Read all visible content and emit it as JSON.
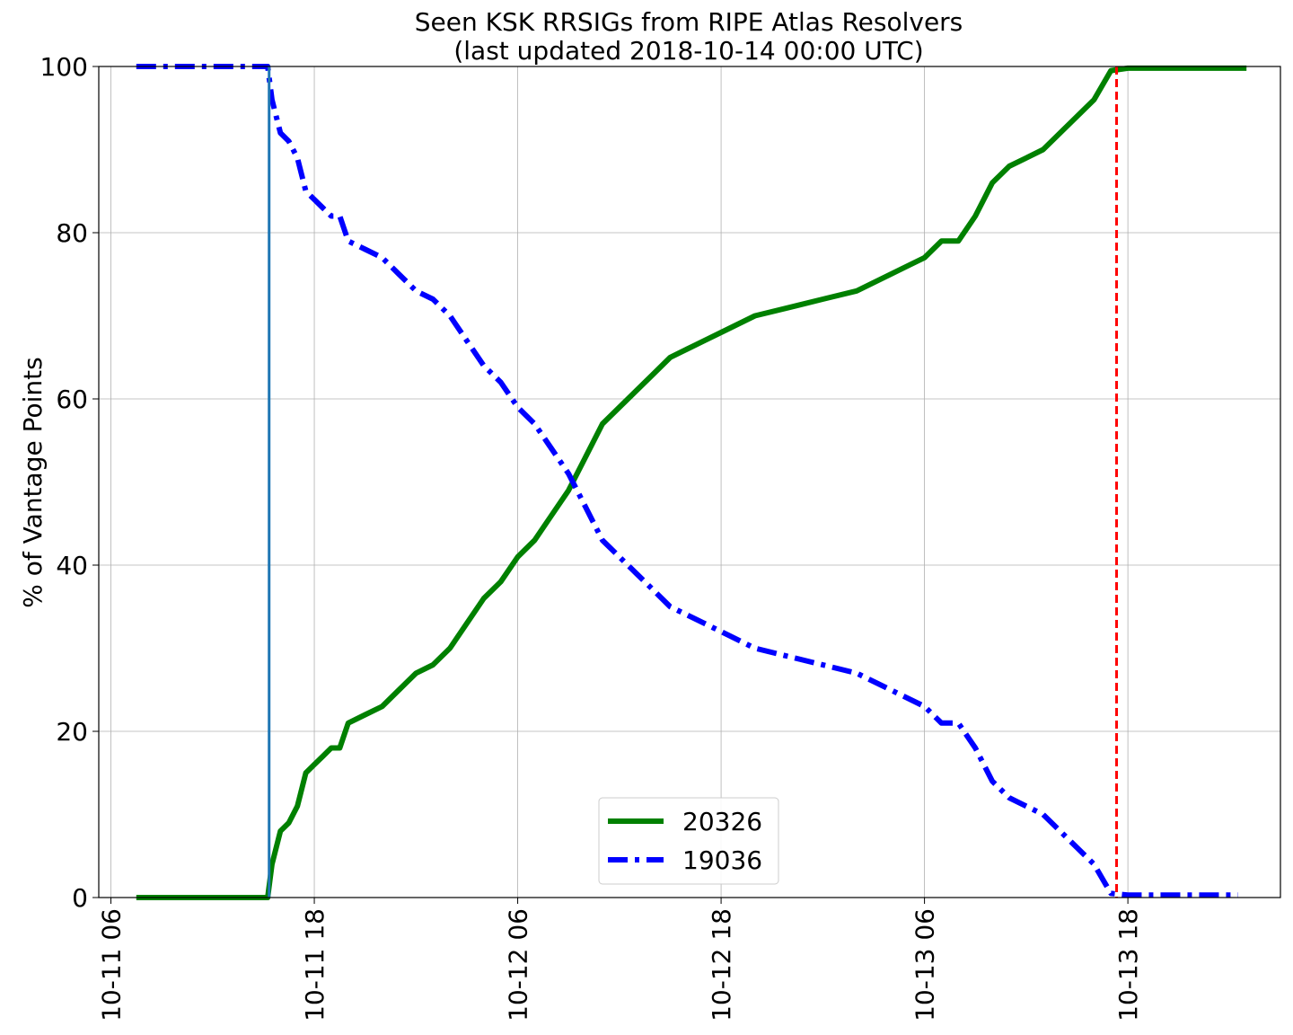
{
  "chart_data": {
    "type": "line",
    "title": "Seen KSK RRSIGs from RIPE Atlas Resolvers",
    "subtitle": "(last updated 2018-10-14 00:00 UTC)",
    "xlabel": "",
    "ylabel": "% of Vantage Points",
    "x_unit": "hour",
    "xlim": [
      "2018-10-11 05:17",
      "2018-10-14 03:00"
    ],
    "ylim": [
      0,
      100
    ],
    "x_ticks": [
      "2018-10-11 06:00",
      "2018-10-11 18:00",
      "2018-10-12 06:00",
      "2018-10-12 18:00",
      "2018-10-13 06:00",
      "2018-10-13 18:00"
    ],
    "x_tick_labels": [
      "10-11 06",
      "10-11 18",
      "10-12 06",
      "10-12 18",
      "10-13 06",
      "10-13 18"
    ],
    "y_ticks": [
      0,
      20,
      40,
      60,
      80,
      100
    ],
    "y_tick_labels": [
      "0",
      "20",
      "40",
      "60",
      "80",
      "100"
    ],
    "grid": true,
    "legend_position": "lower-center",
    "series": [
      {
        "name": "20326",
        "color": "#008000",
        "style": "solid",
        "points": [
          [
            "2018-10-11 07:30",
            0
          ],
          [
            "2018-10-11 10:00",
            0
          ],
          [
            "2018-10-11 13:00",
            0
          ],
          [
            "2018-10-11 15:15",
            0
          ],
          [
            "2018-10-11 15:30",
            4
          ],
          [
            "2018-10-11 16:00",
            8
          ],
          [
            "2018-10-11 16:30",
            9
          ],
          [
            "2018-10-11 17:00",
            11
          ],
          [
            "2018-10-11 17:30",
            15
          ],
          [
            "2018-10-11 18:00",
            16
          ],
          [
            "2018-10-11 18:30",
            17
          ],
          [
            "2018-10-11 19:00",
            18
          ],
          [
            "2018-10-11 19:30",
            18
          ],
          [
            "2018-10-11 20:00",
            21
          ],
          [
            "2018-10-11 21:00",
            22
          ],
          [
            "2018-10-11 22:00",
            23
          ],
          [
            "2018-10-11 23:00",
            25
          ],
          [
            "2018-10-12 00:00",
            27
          ],
          [
            "2018-10-12 01:00",
            28
          ],
          [
            "2018-10-12 02:00",
            30
          ],
          [
            "2018-10-12 03:00",
            33
          ],
          [
            "2018-10-12 04:00",
            36
          ],
          [
            "2018-10-12 05:00",
            38
          ],
          [
            "2018-10-12 06:00",
            41
          ],
          [
            "2018-10-12 07:00",
            43
          ],
          [
            "2018-10-12 08:00",
            46
          ],
          [
            "2018-10-12 09:00",
            49
          ],
          [
            "2018-10-12 10:00",
            53
          ],
          [
            "2018-10-12 11:00",
            57
          ],
          [
            "2018-10-12 12:00",
            59
          ],
          [
            "2018-10-12 13:00",
            61
          ],
          [
            "2018-10-12 14:00",
            63
          ],
          [
            "2018-10-12 15:00",
            65
          ],
          [
            "2018-10-12 16:00",
            66
          ],
          [
            "2018-10-12 18:00",
            68
          ],
          [
            "2018-10-12 20:00",
            70
          ],
          [
            "2018-10-12 22:00",
            71
          ],
          [
            "2018-10-13 00:00",
            72
          ],
          [
            "2018-10-13 02:00",
            73
          ],
          [
            "2018-10-13 04:00",
            75
          ],
          [
            "2018-10-13 06:00",
            77
          ],
          [
            "2018-10-13 07:00",
            79
          ],
          [
            "2018-10-13 08:00",
            79
          ],
          [
            "2018-10-13 09:00",
            82
          ],
          [
            "2018-10-13 10:00",
            86
          ],
          [
            "2018-10-13 11:00",
            88
          ],
          [
            "2018-10-13 12:00",
            89
          ],
          [
            "2018-10-13 13:00",
            90
          ],
          [
            "2018-10-13 14:00",
            92
          ],
          [
            "2018-10-13 15:00",
            94
          ],
          [
            "2018-10-13 16:00",
            96
          ],
          [
            "2018-10-13 17:00",
            99.5
          ],
          [
            "2018-10-13 18:00",
            99.8
          ],
          [
            "2018-10-13 20:00",
            99.8
          ],
          [
            "2018-10-13 22:00",
            99.8
          ],
          [
            "2018-10-14 00:00",
            99.8
          ],
          [
            "2018-10-14 01:00",
            99.8
          ]
        ]
      },
      {
        "name": "19036",
        "color": "#0000ff",
        "style": "dashdot",
        "points": [
          [
            "2018-10-11 07:30",
            100
          ],
          [
            "2018-10-11 10:00",
            100
          ],
          [
            "2018-10-11 13:00",
            100
          ],
          [
            "2018-10-11 15:15",
            100
          ],
          [
            "2018-10-11 15:30",
            96
          ],
          [
            "2018-10-11 16:00",
            92
          ],
          [
            "2018-10-11 16:30",
            91
          ],
          [
            "2018-10-11 17:00",
            89
          ],
          [
            "2018-10-11 17:30",
            85
          ],
          [
            "2018-10-11 18:00",
            84
          ],
          [
            "2018-10-11 18:30",
            83
          ],
          [
            "2018-10-11 19:00",
            82
          ],
          [
            "2018-10-11 19:30",
            82
          ],
          [
            "2018-10-11 20:00",
            79
          ],
          [
            "2018-10-11 21:00",
            78
          ],
          [
            "2018-10-11 22:00",
            77
          ],
          [
            "2018-10-11 23:00",
            75
          ],
          [
            "2018-10-12 00:00",
            73
          ],
          [
            "2018-10-12 01:00",
            72
          ],
          [
            "2018-10-12 02:00",
            70
          ],
          [
            "2018-10-12 03:00",
            67
          ],
          [
            "2018-10-12 04:00",
            64
          ],
          [
            "2018-10-12 05:00",
            62
          ],
          [
            "2018-10-12 06:00",
            59
          ],
          [
            "2018-10-12 07:00",
            57
          ],
          [
            "2018-10-12 08:00",
            54
          ],
          [
            "2018-10-12 09:00",
            51
          ],
          [
            "2018-10-12 10:00",
            47
          ],
          [
            "2018-10-12 11:00",
            43
          ],
          [
            "2018-10-12 12:00",
            41
          ],
          [
            "2018-10-12 13:00",
            39
          ],
          [
            "2018-10-12 14:00",
            37
          ],
          [
            "2018-10-12 15:00",
            35
          ],
          [
            "2018-10-12 16:00",
            34
          ],
          [
            "2018-10-12 18:00",
            32
          ],
          [
            "2018-10-12 20:00",
            30
          ],
          [
            "2018-10-12 22:00",
            29
          ],
          [
            "2018-10-13 00:00",
            28
          ],
          [
            "2018-10-13 02:00",
            27
          ],
          [
            "2018-10-13 04:00",
            25
          ],
          [
            "2018-10-13 06:00",
            23
          ],
          [
            "2018-10-13 07:00",
            21
          ],
          [
            "2018-10-13 08:00",
            21
          ],
          [
            "2018-10-13 09:00",
            18
          ],
          [
            "2018-10-13 10:00",
            14
          ],
          [
            "2018-10-13 11:00",
            12
          ],
          [
            "2018-10-13 12:00",
            11
          ],
          [
            "2018-10-13 13:00",
            10
          ],
          [
            "2018-10-13 14:00",
            8
          ],
          [
            "2018-10-13 15:00",
            6
          ],
          [
            "2018-10-13 16:00",
            4
          ],
          [
            "2018-10-13 17:00",
            0.5
          ],
          [
            "2018-10-13 18:00",
            0.3
          ],
          [
            "2018-10-13 20:00",
            0.3
          ],
          [
            "2018-10-13 22:00",
            0.3
          ],
          [
            "2018-10-14 00:00",
            0.3
          ],
          [
            "2018-10-14 00:30",
            0.3
          ]
        ]
      }
    ],
    "vertical_lines": [
      {
        "x": "2018-10-11 15:20",
        "color": "#1f77b4",
        "style": "solid"
      },
      {
        "x": "2018-10-13 17:20",
        "color": "#ff0000",
        "style": "dashed"
      }
    ]
  }
}
